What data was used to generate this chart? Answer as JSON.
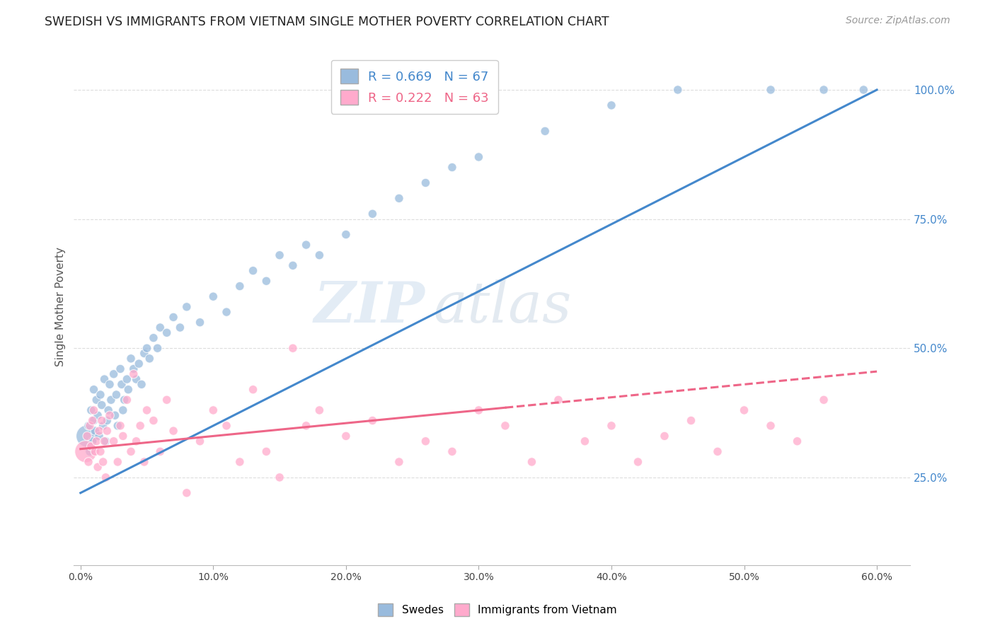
{
  "title": "SWEDISH VS IMMIGRANTS FROM VIETNAM SINGLE MOTHER POVERTY CORRELATION CHART",
  "source": "Source: ZipAtlas.com",
  "ylabel": "Single Mother Poverty",
  "legend_label1": "Swedes",
  "legend_label2": "Immigrants from Vietnam",
  "r1": 0.669,
  "n1": 67,
  "r2": 0.222,
  "n2": 63,
  "color_blue": "#99BBDD",
  "color_pink": "#FFAACC",
  "color_line_blue": "#4488CC",
  "color_line_pink": "#EE6688",
  "ytick_labels": [
    "25.0%",
    "50.0%",
    "75.0%",
    "100.0%"
  ],
  "ytick_values": [
    0.25,
    0.5,
    0.75,
    1.0
  ],
  "blue_line_x0": 0.0,
  "blue_line_y0": 0.22,
  "blue_line_x1": 0.6,
  "blue_line_y1": 1.0,
  "pink_line_x0": 0.0,
  "pink_line_y0": 0.305,
  "pink_line_x1_solid": 0.32,
  "pink_line_y1_solid": 0.385,
  "pink_line_x1_dash": 0.6,
  "pink_line_y1_dash": 0.455,
  "swedes_x": [
    0.005,
    0.006,
    0.007,
    0.008,
    0.009,
    0.01,
    0.01,
    0.011,
    0.012,
    0.013,
    0.014,
    0.015,
    0.016,
    0.017,
    0.018,
    0.019,
    0.02,
    0.021,
    0.022,
    0.023,
    0.025,
    0.026,
    0.027,
    0.028,
    0.03,
    0.031,
    0.032,
    0.033,
    0.035,
    0.036,
    0.038,
    0.04,
    0.042,
    0.044,
    0.046,
    0.048,
    0.05,
    0.052,
    0.055,
    0.058,
    0.06,
    0.065,
    0.07,
    0.075,
    0.08,
    0.09,
    0.1,
    0.11,
    0.12,
    0.13,
    0.14,
    0.15,
    0.16,
    0.17,
    0.18,
    0.2,
    0.22,
    0.24,
    0.26,
    0.28,
    0.3,
    0.35,
    0.4,
    0.45,
    0.52,
    0.56,
    0.59
  ],
  "swedes_y": [
    0.33,
    0.35,
    0.3,
    0.38,
    0.32,
    0.42,
    0.36,
    0.34,
    0.4,
    0.37,
    0.33,
    0.41,
    0.39,
    0.35,
    0.44,
    0.32,
    0.36,
    0.38,
    0.43,
    0.4,
    0.45,
    0.37,
    0.41,
    0.35,
    0.46,
    0.43,
    0.38,
    0.4,
    0.44,
    0.42,
    0.48,
    0.46,
    0.44,
    0.47,
    0.43,
    0.49,
    0.5,
    0.48,
    0.52,
    0.5,
    0.54,
    0.53,
    0.56,
    0.54,
    0.58,
    0.55,
    0.6,
    0.57,
    0.62,
    0.65,
    0.63,
    0.68,
    0.66,
    0.7,
    0.68,
    0.72,
    0.76,
    0.79,
    0.82,
    0.85,
    0.87,
    0.92,
    0.97,
    1.0,
    1.0,
    1.0,
    1.0
  ],
  "swedes_sizes": [
    500,
    80,
    80,
    80,
    80,
    80,
    80,
    80,
    80,
    80,
    80,
    80,
    80,
    80,
    80,
    80,
    80,
    80,
    80,
    80,
    80,
    80,
    80,
    80,
    80,
    80,
    80,
    80,
    80,
    80,
    80,
    80,
    80,
    80,
    80,
    80,
    80,
    80,
    80,
    80,
    80,
    80,
    80,
    80,
    80,
    80,
    80,
    80,
    80,
    80,
    80,
    80,
    80,
    80,
    80,
    80,
    80,
    80,
    80,
    80,
    80,
    80,
    80,
    80,
    80,
    80,
    80
  ],
  "vietnam_x": [
    0.004,
    0.005,
    0.006,
    0.007,
    0.008,
    0.009,
    0.01,
    0.011,
    0.012,
    0.013,
    0.014,
    0.015,
    0.016,
    0.017,
    0.018,
    0.019,
    0.02,
    0.022,
    0.025,
    0.028,
    0.03,
    0.032,
    0.035,
    0.038,
    0.04,
    0.042,
    0.045,
    0.048,
    0.05,
    0.055,
    0.06,
    0.065,
    0.07,
    0.08,
    0.09,
    0.1,
    0.11,
    0.12,
    0.13,
    0.14,
    0.15,
    0.16,
    0.17,
    0.18,
    0.2,
    0.22,
    0.24,
    0.26,
    0.28,
    0.3,
    0.32,
    0.34,
    0.36,
    0.38,
    0.4,
    0.42,
    0.44,
    0.46,
    0.48,
    0.5,
    0.52,
    0.54,
    0.56
  ],
  "vietnam_y": [
    0.3,
    0.33,
    0.28,
    0.35,
    0.31,
    0.36,
    0.38,
    0.3,
    0.32,
    0.27,
    0.34,
    0.3,
    0.36,
    0.28,
    0.32,
    0.25,
    0.34,
    0.37,
    0.32,
    0.28,
    0.35,
    0.33,
    0.4,
    0.3,
    0.45,
    0.32,
    0.35,
    0.28,
    0.38,
    0.36,
    0.3,
    0.4,
    0.34,
    0.22,
    0.32,
    0.38,
    0.35,
    0.28,
    0.42,
    0.3,
    0.25,
    0.5,
    0.35,
    0.38,
    0.33,
    0.36,
    0.28,
    0.32,
    0.3,
    0.38,
    0.35,
    0.28,
    0.4,
    0.32,
    0.35,
    0.28,
    0.33,
    0.36,
    0.3,
    0.38,
    0.35,
    0.32,
    0.4
  ],
  "vietnam_sizes": [
    500,
    80,
    80,
    80,
    80,
    80,
    80,
    80,
    80,
    80,
    80,
    80,
    80,
    80,
    80,
    80,
    80,
    80,
    80,
    80,
    80,
    80,
    80,
    80,
    80,
    80,
    80,
    80,
    80,
    80,
    80,
    80,
    80,
    80,
    80,
    80,
    80,
    80,
    80,
    80,
    80,
    80,
    80,
    80,
    80,
    80,
    80,
    80,
    80,
    80,
    80,
    80,
    80,
    80,
    80,
    80,
    80,
    80,
    80,
    80,
    80,
    80,
    80
  ],
  "xlim": [
    -0.005,
    0.625
  ],
  "ylim": [
    0.08,
    1.08
  ],
  "xticks": [
    0.0,
    0.1,
    0.2,
    0.3,
    0.4,
    0.5,
    0.6
  ],
  "xtick_labels": [
    "0.0%",
    "10.0%",
    "20.0%",
    "30.0%",
    "40.0%",
    "50.0%",
    "60.0%"
  ],
  "watermark_zip": "ZIP",
  "watermark_atlas": "atlas",
  "background_color": "#FFFFFF",
  "grid_color": "#DDDDDD"
}
